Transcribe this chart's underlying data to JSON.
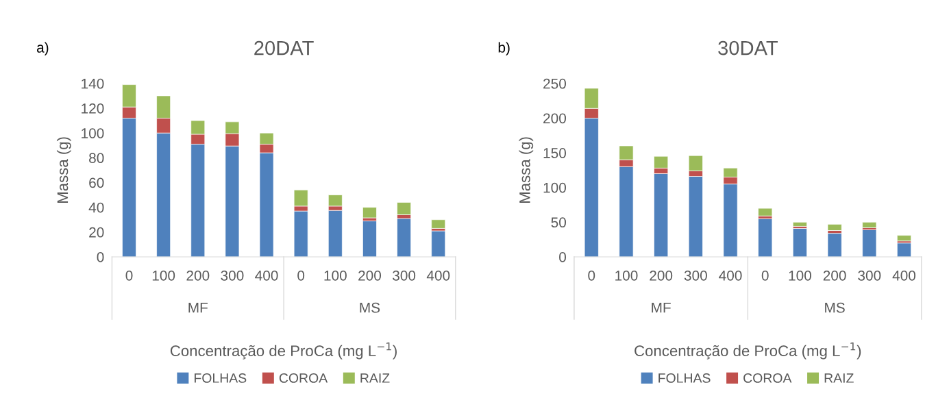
{
  "chart_data": [
    {
      "type": "bar",
      "title": "20DAT",
      "ylabel": "Massa (g)",
      "xlabel": "Concentração de ProCa (mg L$^{−1}$)",
      "stacked": true,
      "legend": "bottom",
      "grid": false,
      "annotations": [
        "a)",
        "MF",
        "MS"
      ],
      "categories": [
        "0",
        "100",
        "200",
        "300",
        "400",
        "0",
        "100",
        "200",
        "300",
        "400"
      ],
      "ylim": [
        0,
        140
      ],
      "yticks": [
        0,
        20,
        40,
        60,
        80,
        100,
        120,
        140
      ],
      "series": [
        {
          "name": "FOLHAS",
          "color": "#4f81bd",
          "values": [
            112,
            100,
            91,
            89.5,
            84,
            37,
            37.5,
            29,
            31,
            21
          ]
        },
        {
          "name": "COROA",
          "color": "#c0504d",
          "values": [
            9,
            12,
            8,
            10,
            7,
            4,
            3.5,
            2.5,
            3,
            2
          ]
        },
        {
          "name": "RAIZ",
          "color": "#9bbb59",
          "values": [
            18,
            18,
            11,
            9.5,
            9,
            13,
            9,
            8.5,
            10,
            7
          ]
        }
      ]
    },
    {
      "type": "bar",
      "title": "30DAT",
      "ylabel": "Massa (g)",
      "xlabel": "Concentração de ProCa (mg L$^{−1}$)",
      "stacked": true,
      "legend": "bottom",
      "grid": false,
      "annotations": [
        "b)",
        "MF",
        "MS"
      ],
      "categories": [
        "0",
        "100",
        "200",
        "300",
        "400",
        "0",
        "100",
        "200",
        "300",
        "400"
      ],
      "ylim": [
        0,
        250
      ],
      "yticks": [
        0,
        50,
        100,
        150,
        200,
        250
      ],
      "series": [
        {
          "name": "FOLHAS",
          "color": "#4f81bd",
          "values": [
            200,
            130,
            120,
            116,
            105,
            55,
            41,
            34,
            39,
            20
          ]
        },
        {
          "name": "COROA",
          "color": "#c0504d",
          "values": [
            14,
            10,
            8,
            8,
            10,
            4,
            3,
            4,
            3,
            3
          ]
        },
        {
          "name": "RAIZ",
          "color": "#9bbb59",
          "values": [
            29,
            20,
            17,
            22,
            13,
            11,
            6,
            9,
            8,
            8
          ]
        }
      ]
    }
  ]
}
